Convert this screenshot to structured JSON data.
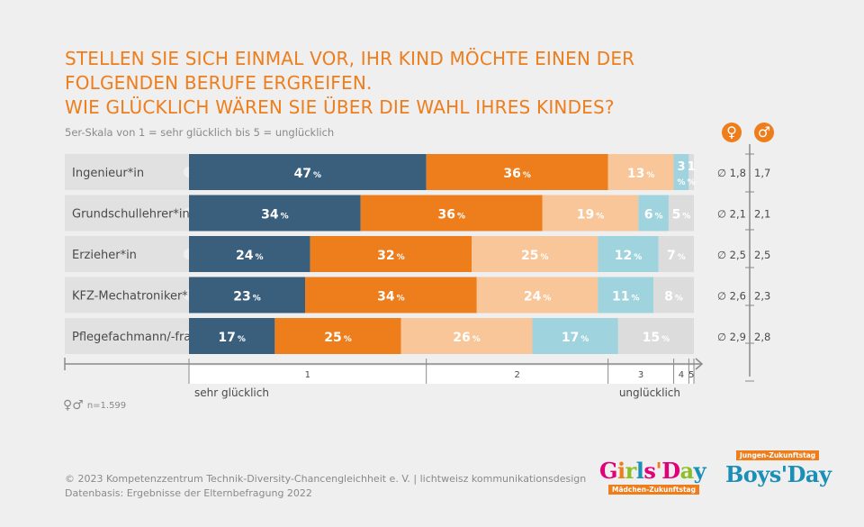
{
  "title_lines": [
    "STELLEN SIE SICH EINMAL VOR, IHR KIND MÖCHTE EINEN DER",
    "FOLGENDEN BERUFE ERGREIFEN.",
    "WIE GLÜCKLICH WÄREN SIE ÜBER DIE WAHL IHRES KINDES?"
  ],
  "subtitle": "5er-Skala von 1 = sehr glücklich bis 5 = unglücklich",
  "gender_header": {
    "female": "♀",
    "male": "♂"
  },
  "n_note": {
    "symbols": "♀♂",
    "text": "n=1.599"
  },
  "footer": [
    "© 2023  Kompetenzzentrum Technik-Diversity-Chancengleichheit e. V. | lichtweisz kommunikationsdesign",
    "Datenbasis: Ergebnisse der Elternbefragung 2022"
  ],
  "logos": {
    "girls_day": {
      "letters": [
        "G",
        "i",
        "r",
        "l",
        "s",
        "'",
        "D",
        "a",
        "y"
      ],
      "sub": "Mädchen-Zukunftstag"
    },
    "boys_day": {
      "main": "Boys'Day",
      "sub": "Jungen-Zukunftstag"
    }
  },
  "colors": {
    "title": "#ee7d1c",
    "scale": [
      "#3a5f7d",
      "#ee7d1c",
      "#f8c698",
      "#9fd3de",
      "#dcdcdc"
    ],
    "label_bg": "#e1e1e1",
    "girls_letters": [
      "#e2007a",
      "#ee7d1c",
      "#8cbf26",
      "#1a8fb8",
      "#e2007a",
      "#ee7d1c",
      "#e2007a",
      "#8cbf26",
      "#1a8fb8"
    ]
  },
  "chart_data": {
    "type": "bar",
    "orientation": "horizontal",
    "stacked": true,
    "unit": "%",
    "categories": [
      "Ingenieur*in",
      "Grundschullehrer*in",
      "Erzieher*in",
      "KFZ-Mechatroniker*in",
      "Pflegefachmann/-frau"
    ],
    "series": [
      {
        "name": "1",
        "values": [
          47,
          34,
          24,
          23,
          17
        ]
      },
      {
        "name": "2",
        "values": [
          36,
          36,
          32,
          34,
          25
        ]
      },
      {
        "name": "3",
        "values": [
          13,
          19,
          25,
          24,
          26
        ]
      },
      {
        "name": "4",
        "values": [
          3,
          6,
          12,
          11,
          17
        ]
      },
      {
        "name": "5",
        "values": [
          1,
          5,
          7,
          8,
          15
        ]
      }
    ],
    "scale_labels": {
      "low": "sehr glücklich",
      "high": "unglücklich"
    },
    "mean_symbol": "∅",
    "means_female": [
      "1,8",
      "2,1",
      "2,5",
      "2,6",
      "2,9"
    ],
    "means_male": [
      "1,7",
      "2,1",
      "2,5",
      "2,3",
      "2,8"
    ]
  }
}
